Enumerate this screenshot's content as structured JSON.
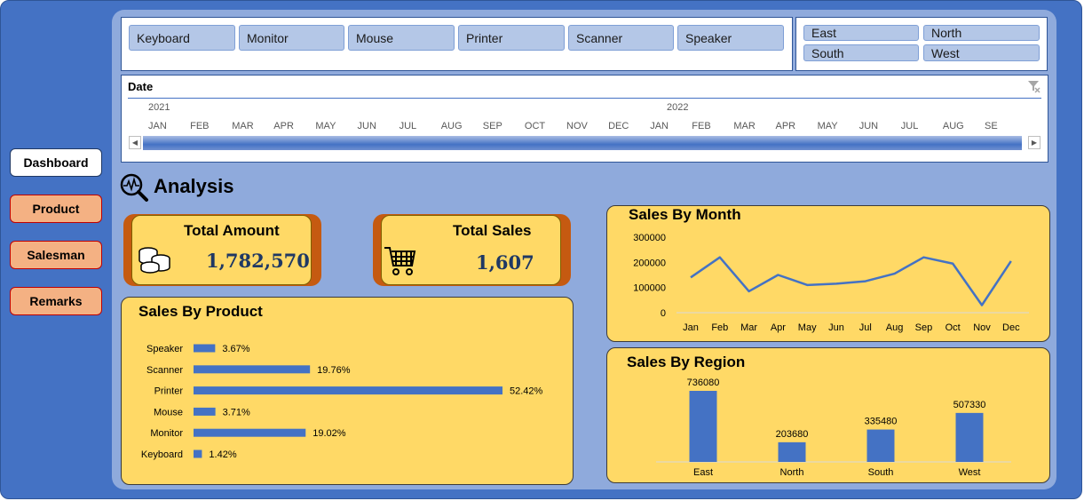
{
  "nav": {
    "dashboard": "Dashboard",
    "product": "Product",
    "salesman": "Salesman",
    "remarks": "Remarks"
  },
  "product_slicer": [
    "Keyboard",
    "Monitor",
    "Mouse",
    "Printer",
    "Scanner",
    "Speaker"
  ],
  "region_slicer": [
    "East",
    "North",
    "South",
    "West"
  ],
  "timeline": {
    "header": "Date",
    "years": [
      "2021",
      "2022"
    ],
    "months": [
      "JAN",
      "FEB",
      "MAR",
      "APR",
      "MAY",
      "JUN",
      "JUL",
      "AUG",
      "SEP",
      "OCT",
      "NOV",
      "DEC",
      "JAN",
      "FEB",
      "MAR",
      "APR",
      "MAY",
      "JUN",
      "JUL",
      "AUG",
      "SE"
    ]
  },
  "analysis_title": "Analysis",
  "kpi": {
    "amount_label": "Total Amount",
    "amount_value": "1,782,570",
    "sales_label": "Total Sales",
    "sales_value": "1,607"
  },
  "chart_data": [
    {
      "type": "bar",
      "orientation": "horizontal",
      "title": "Sales By Product",
      "categories": [
        "Speaker",
        "Scanner",
        "Printer",
        "Mouse",
        "Monitor",
        "Keyboard"
      ],
      "values": [
        3.67,
        19.76,
        52.42,
        3.71,
        19.02,
        1.42
      ],
      "labels": [
        "3.67%",
        "19.76%",
        "52.42%",
        "3.71%",
        "19.02%",
        "1.42%"
      ],
      "color": "#4472c4"
    },
    {
      "type": "line",
      "title": "Sales By Month",
      "categories": [
        "Jan",
        "Feb",
        "Mar",
        "Apr",
        "May",
        "Jun",
        "Jul",
        "Aug",
        "Sep",
        "Oct",
        "Nov",
        "Dec"
      ],
      "values": [
        140000,
        220000,
        85000,
        150000,
        110000,
        115000,
        125000,
        155000,
        220000,
        195000,
        30000,
        205000
      ],
      "yticks": [
        "300000",
        "200000",
        "100000",
        "0"
      ],
      "ylim": [
        0,
        300000
      ],
      "color": "#4472c4"
    },
    {
      "type": "bar",
      "title": "Sales By Region",
      "categories": [
        "East",
        "North",
        "South",
        "West"
      ],
      "values": [
        736080,
        203680,
        335480,
        507330
      ],
      "labels": [
        "736080",
        "203680",
        "335480",
        "507330"
      ],
      "color": "#4472c4"
    }
  ]
}
